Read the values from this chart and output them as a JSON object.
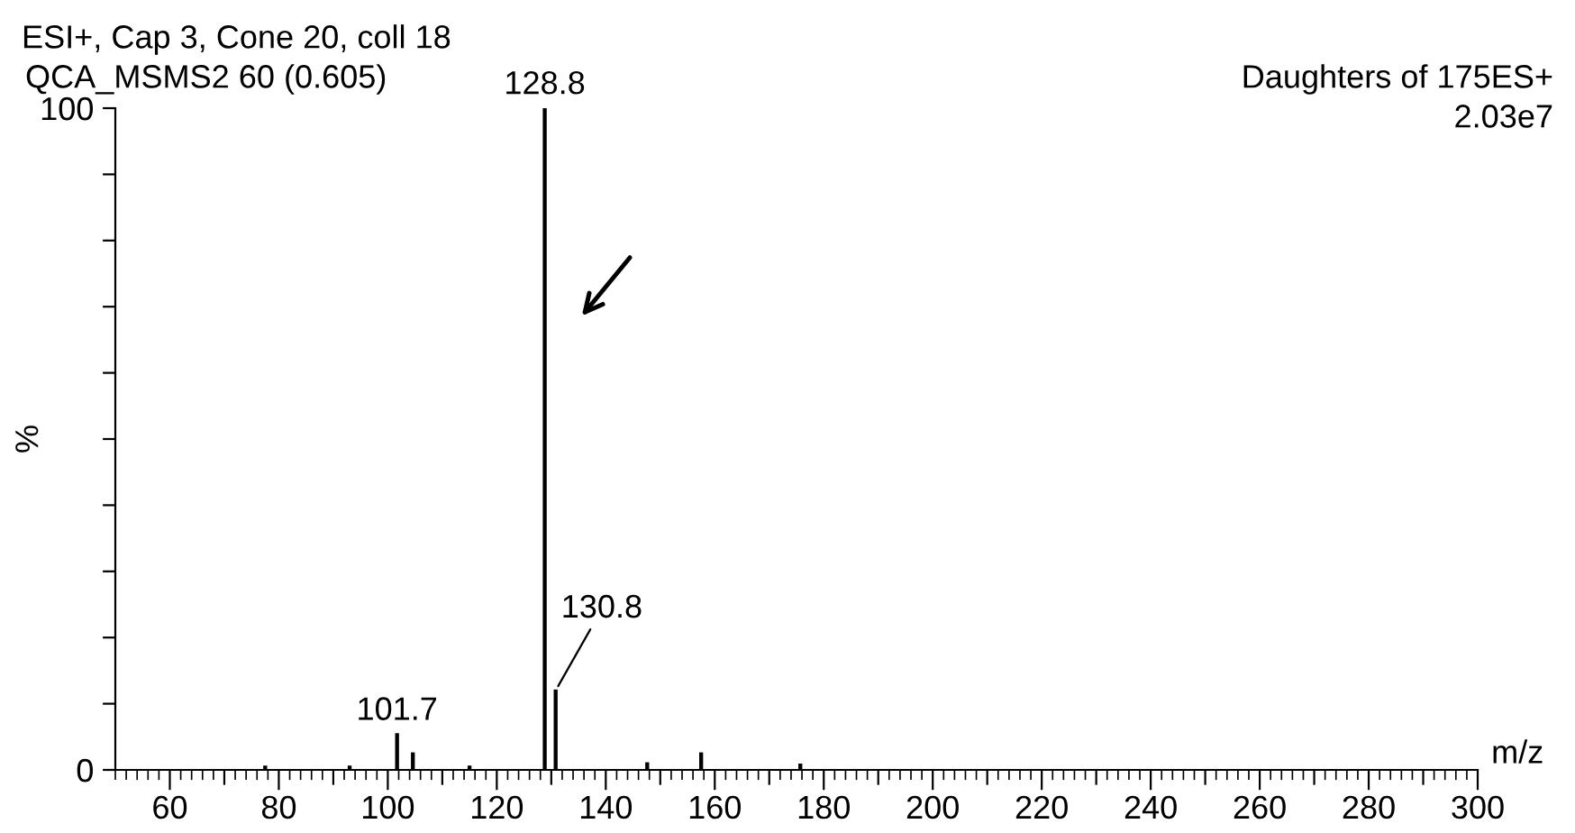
{
  "chart_data": {
    "type": "bar",
    "title": "ESI+, Cap 3, Cone 20, coll 18",
    "subtitle": "QCA_MSMS2 60 (0.605)",
    "xlabel": "m/z",
    "ylabel": "%",
    "x": [
      77.5,
      93,
      101.7,
      104.6,
      115,
      128.8,
      130.8,
      147.6,
      157.5,
      175.7
    ],
    "values": [
      0.5,
      0.5,
      5.4,
      2.5,
      0.5,
      100,
      12,
      1,
      2.5,
      0.8
    ],
    "color": "#000000",
    "annotations": [
      {
        "text": "128.8",
        "x": 128.8,
        "y": 100
      },
      {
        "text": "130.8",
        "x": 130.8,
        "y": 12
      },
      {
        "text": "101.7",
        "x": 101.7,
        "y": 5.4
      },
      "Daughters of 175ES+",
      "2.03e7"
    ],
    "xlim": [
      50,
      300
    ],
    "ylim": [
      0,
      100
    ],
    "xticks": [
      60,
      {
        "value": 70,
        "label": null
      },
      80,
      {
        "value": 90,
        "label": null
      },
      100,
      {
        "value": 110,
        "label": null
      },
      120,
      {
        "value": 130,
        "label": null
      },
      140,
      {
        "value": 150,
        "label": null
      },
      160,
      {
        "value": 170,
        "label": null
      },
      180,
      {
        "value": 190,
        "label": null
      },
      200,
      {
        "value": 210,
        "label": null
      },
      220,
      {
        "value": 230,
        "label": null
      },
      240,
      {
        "value": 250,
        "label": null
      },
      260,
      {
        "value": 270,
        "label": null
      },
      280,
      {
        "value": 290,
        "label": null
      },
      300
    ],
    "yticks": [
      0,
      {
        "value": 10,
        "label": null
      },
      {
        "value": 20,
        "label": null
      },
      {
        "value": 30,
        "label": null
      },
      {
        "value": 40,
        "label": null
      },
      {
        "value": 50,
        "label": null
      },
      {
        "value": 60,
        "label": null
      },
      {
        "value": 70,
        "label": null
      },
      {
        "value": 80,
        "label": null
      },
      {
        "value": 90,
        "label": null
      },
      100
    ],
    "grid": false,
    "legend": false
  }
}
